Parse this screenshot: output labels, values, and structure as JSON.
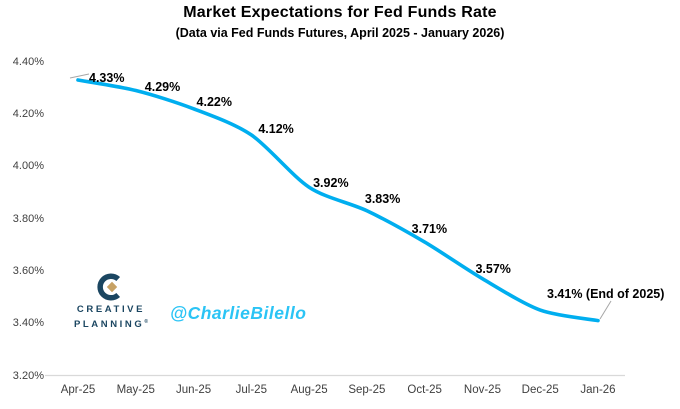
{
  "title": "Market Expectations for Fed Funds Rate",
  "subtitle": "(Data via Fed Funds Futures, April 2025 - January 2026)",
  "branding": {
    "logo_line1": "CREATIVE",
    "logo_line2": "PLANNING",
    "logo_reg": "®",
    "handle": "@CharlieBilello",
    "logo_navy": "#1B4661",
    "logo_gold": "#C7A265",
    "handle_color": "#2BC4F5"
  },
  "chart_data": {
    "type": "line",
    "title": "Market Expectations for Fed Funds Rate",
    "subtitle": "(Data via Fed Funds Futures, April 2025 - January 2026)",
    "categories": [
      "Apr-25",
      "May-25",
      "Jun-25",
      "Jul-25",
      "Aug-25",
      "Sep-25",
      "Oct-25",
      "Nov-25",
      "Dec-25",
      "Jan-26"
    ],
    "values": [
      4.33,
      4.29,
      4.22,
      4.12,
      3.92,
      3.83,
      3.71,
      3.57,
      3.45,
      3.41
    ],
    "point_labels": [
      "4.33%",
      "4.29%",
      "4.22%",
      "4.12%",
      "3.92%",
      "3.83%",
      "3.71%",
      "3.57%",
      "",
      "3.41% (End of 2025)"
    ],
    "y_ticks": [
      "4.40%",
      "4.20%",
      "4.00%",
      "3.80%",
      "3.60%",
      "3.40%",
      "3.20%"
    ],
    "y_tick_values": [
      4.4,
      4.2,
      4.0,
      3.8,
      3.6,
      3.4,
      3.2
    ],
    "ylim": [
      3.2,
      4.4
    ],
    "xlabel": "",
    "ylabel": "",
    "line_color": "#00AEEF",
    "axis_line_color": "#D9D9D9",
    "leader_color": "#A6A6A6",
    "tick_color": "#404040",
    "grid": false,
    "legend": "none"
  }
}
